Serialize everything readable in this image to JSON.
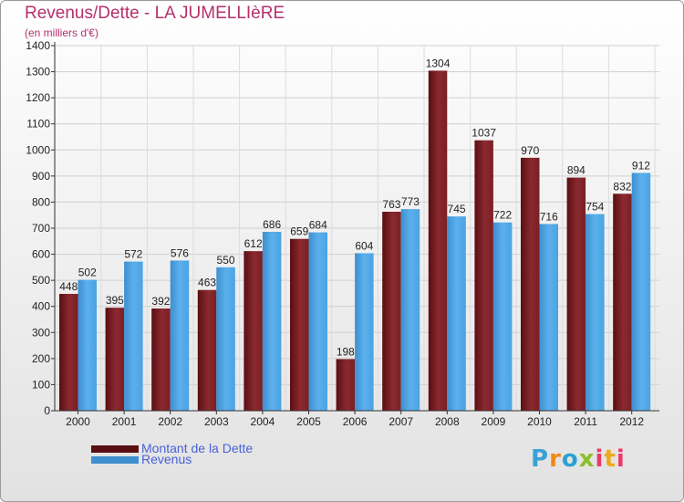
{
  "title": "Revenus/Dette - LA JUMELLIèRE",
  "subtitle": "(en milliers d'€)",
  "chart_data": {
    "type": "bar",
    "categories": [
      "2000",
      "2001",
      "2002",
      "2003",
      "2004",
      "2005",
      "2006",
      "2007",
      "2008",
      "2009",
      "2010",
      "2011",
      "2012"
    ],
    "series": [
      {
        "name": "Montant de la Dette",
        "color": "#7a1f24",
        "values": [
          448,
          395,
          392,
          463,
          612,
          659,
          198,
          763,
          1304,
          1037,
          970,
          894,
          832
        ]
      },
      {
        "name": "Revenus",
        "color": "#4aa3e3",
        "values": [
          502,
          572,
          576,
          550,
          686,
          684,
          604,
          773,
          745,
          722,
          716,
          754,
          912
        ]
      }
    ],
    "ylim": [
      0,
      1400
    ],
    "yticks": [
      0,
      100,
      200,
      300,
      400,
      500,
      600,
      700,
      800,
      900,
      1000,
      1100,
      1200,
      1300,
      1400
    ],
    "grid": true,
    "legend_position": "bottom-left"
  },
  "legend": {
    "debt_label": "Montant de la Dette",
    "revenue_label": "Revenus"
  },
  "logo": "Proxiti"
}
